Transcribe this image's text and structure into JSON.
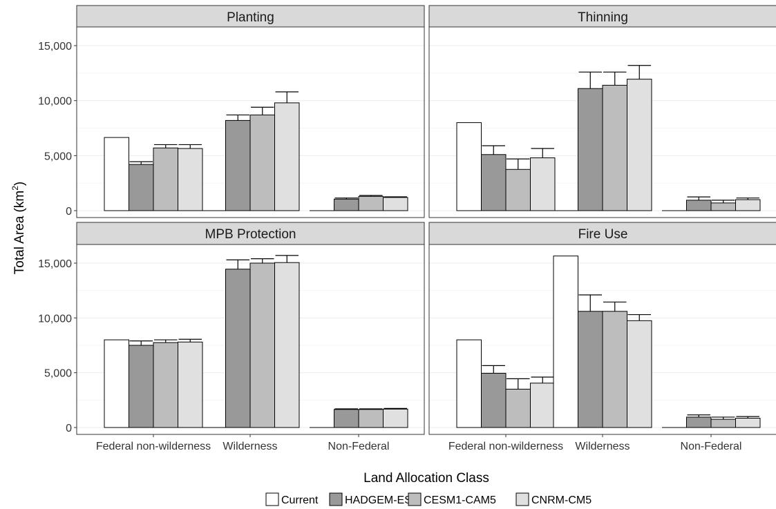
{
  "chart_data": {
    "type": "bar",
    "ylabel": "Total Area (km",
    "ylabel_sup": "2",
    "ylabel_close": ")",
    "xlabel": "Land Allocation Class",
    "categories": [
      "Federal non-wilderness",
      "Wilderness",
      "Non-Federal"
    ],
    "yticks": [
      "0",
      "5,000",
      "10,000",
      "15,000"
    ],
    "ylim": [
      0,
      16700
    ],
    "grid": true,
    "legend_position": "bottom",
    "series_names": [
      "Current",
      "HADGEM-ES",
      "CESM1-CAM5",
      "CNRM-CM5"
    ],
    "colors": [
      "#ffffff",
      "#999999",
      "#bdbdbd",
      "#e0e0e0"
    ],
    "panels": [
      {
        "title": "Planting",
        "values": [
          [
            6650,
            4200,
            5700,
            5650
          ],
          [
            0,
            8200,
            8700,
            9800
          ],
          [
            0,
            1050,
            1300,
            1200
          ]
        ],
        "errors": [
          [
            null,
            4450,
            6000,
            6000
          ],
          [
            null,
            8700,
            9400,
            10800
          ],
          [
            null,
            1150,
            1380,
            1260
          ]
        ]
      },
      {
        "title": "Thinning",
        "values": [
          [
            8000,
            5100,
            3750,
            4800
          ],
          [
            0,
            11100,
            11400,
            11950
          ],
          [
            0,
            950,
            700,
            1000
          ]
        ],
        "errors": [
          [
            null,
            5900,
            4700,
            5650
          ],
          [
            null,
            12600,
            12600,
            13200
          ],
          [
            null,
            1250,
            950,
            1150
          ]
        ]
      },
      {
        "title": "MPB Protection",
        "values": [
          [
            8000,
            7500,
            7750,
            7800
          ],
          [
            0,
            14450,
            15000,
            15050
          ],
          [
            0,
            1650,
            1650,
            1680
          ]
        ],
        "errors": [
          [
            null,
            7900,
            8000,
            8050
          ],
          [
            null,
            15300,
            15400,
            15700
          ],
          [
            null,
            1700,
            1700,
            1740
          ]
        ]
      },
      {
        "title": "Fire Use",
        "values": [
          [
            8000,
            4950,
            3500,
            4050
          ],
          [
            15650,
            10600,
            10600,
            9750
          ],
          [
            0,
            950,
            750,
            850
          ]
        ],
        "errors": [
          [
            null,
            5650,
            4450,
            4600
          ],
          [
            null,
            12100,
            11450,
            10300
          ],
          [
            null,
            1150,
            950,
            1000
          ]
        ]
      }
    ]
  }
}
